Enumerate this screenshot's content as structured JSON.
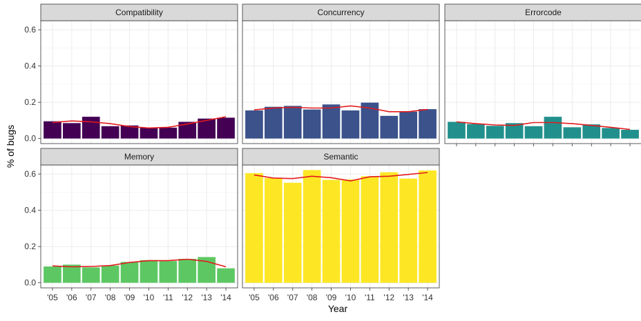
{
  "chart_data": {
    "type": "bar",
    "xlabel": "Year",
    "ylabel": "% of bugs",
    "ylim": [
      0,
      0.65
    ],
    "yticks": [
      0.0,
      0.2,
      0.4,
      0.6
    ],
    "ytick_labels": [
      "0.0",
      "0.2",
      "0.4",
      "0.6"
    ],
    "categories": [
      "'05",
      "'06",
      "'07",
      "'08",
      "'09",
      "'10",
      "'11",
      "'12",
      "'13",
      "'14"
    ],
    "grid": true,
    "legend": "none",
    "trend_line_color": "#e41a1c",
    "panels": [
      {
        "name": "Compatibility",
        "color": "#440154",
        "values": [
          0.095,
          0.085,
          0.12,
          0.068,
          0.072,
          0.058,
          0.06,
          0.092,
          0.11,
          0.115
        ],
        "trend": [
          0.088,
          0.097,
          0.092,
          0.082,
          0.066,
          0.058,
          0.062,
          0.08,
          0.1,
          0.12
        ]
      },
      {
        "name": "Concurrency",
        "color": "#3b528b",
        "values": [
          0.155,
          0.175,
          0.18,
          0.16,
          0.188,
          0.155,
          0.198,
          0.125,
          0.148,
          0.162
        ],
        "trend": [
          0.158,
          0.168,
          0.172,
          0.168,
          0.168,
          0.18,
          0.168,
          0.148,
          0.148,
          0.16
        ]
      },
      {
        "name": "Errorcode",
        "color": "#21908c",
        "values": [
          0.092,
          0.08,
          0.07,
          0.085,
          0.068,
          0.12,
          0.062,
          0.078,
          0.058,
          0.048
        ],
        "trend": [
          0.092,
          0.082,
          0.075,
          0.072,
          0.088,
          0.088,
          0.082,
          0.072,
          0.062,
          0.05
        ]
      },
      {
        "name": "Memory",
        "color": "#5dc863",
        "values": [
          0.09,
          0.1,
          0.085,
          0.095,
          0.115,
          0.125,
          0.12,
          0.132,
          0.142,
          0.08
        ],
        "trend": [
          0.093,
          0.088,
          0.09,
          0.095,
          0.112,
          0.122,
          0.122,
          0.13,
          0.118,
          0.088
        ]
      },
      {
        "name": "Semantic",
        "color": "#fde725",
        "values": [
          0.605,
          0.578,
          0.552,
          0.622,
          0.568,
          0.57,
          0.588,
          0.61,
          0.575,
          0.62
        ],
        "trend": [
          0.595,
          0.578,
          0.575,
          0.588,
          0.58,
          0.562,
          0.585,
          0.588,
          0.598,
          0.608
        ]
      }
    ]
  }
}
